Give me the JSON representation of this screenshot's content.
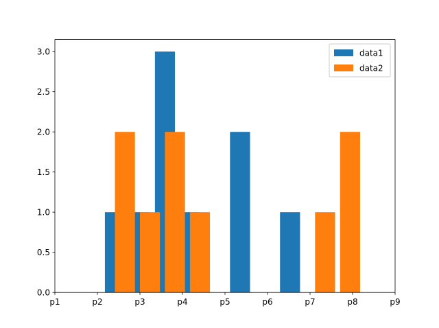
{
  "chart_data": {
    "type": "bar",
    "title": "",
    "xlabel": "",
    "ylabel": "",
    "x_tick_labels": [
      "p1",
      "p2",
      "p3",
      "p4",
      "p5",
      "p6",
      "p7",
      "p8",
      "p9"
    ],
    "y_ticks": [
      0.0,
      0.5,
      1.0,
      1.5,
      2.0,
      2.5,
      3.0
    ],
    "y_tick_labels": [
      "0.0",
      "0.5",
      "1.0",
      "1.5",
      "2.0",
      "2.5",
      "3.0"
    ],
    "xlim": [
      0,
      8
    ],
    "ylim": [
      0,
      3.15
    ],
    "bin_width": 0.4706,
    "grid": false,
    "legend_position": "upper right",
    "series": [
      {
        "name": "data1",
        "color": "#1f77b4",
        "bins": [
          {
            "x": 1.176,
            "value": 1
          },
          {
            "x": 1.765,
            "value": 1
          },
          {
            "x": 2.353,
            "value": 3
          },
          {
            "x": 2.941,
            "value": 1
          },
          {
            "x": 4.118,
            "value": 2
          },
          {
            "x": 5.294,
            "value": 1
          }
        ]
      },
      {
        "name": "data2",
        "color": "#ff7f0e",
        "bins": [
          {
            "x": 1.412,
            "value": 2
          },
          {
            "x": 2.0,
            "value": 1
          },
          {
            "x": 2.588,
            "value": 2
          },
          {
            "x": 3.176,
            "value": 1
          },
          {
            "x": 6.118,
            "value": 1
          },
          {
            "x": 6.706,
            "value": 2
          }
        ]
      }
    ]
  }
}
